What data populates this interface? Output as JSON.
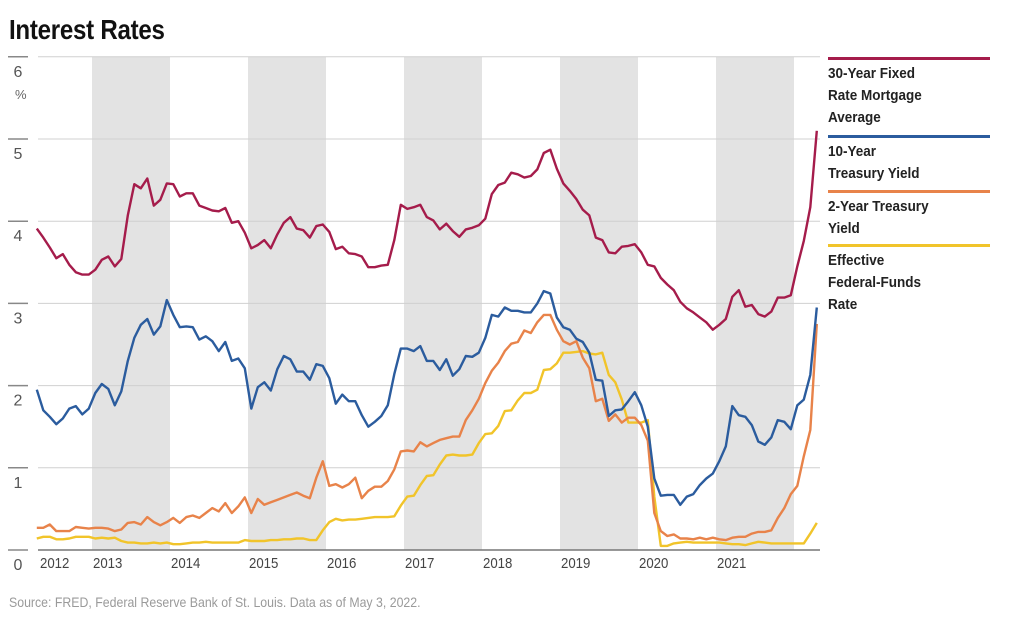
{
  "title": "Interest Rates",
  "source": "Source: FRED, Federal Reserve Bank of St. Louis. Data as of May 3, 2022.",
  "chart_data": {
    "type": "line",
    "title": "Interest Rates",
    "xlabel": "",
    "ylabel": "%",
    "ylim": [
      0,
      6
    ],
    "yticks": [
      "0",
      "1",
      "2",
      "3",
      "4",
      "5",
      "6"
    ],
    "xlim": [
      "2012-04",
      "2022-04"
    ],
    "xticks": [
      "2012",
      "2013",
      "2014",
      "2015",
      "2016",
      "2017",
      "2018",
      "2019",
      "2020",
      "2021"
    ],
    "shaded_years": [
      "2013",
      "2015",
      "2017",
      "2019",
      "2021"
    ],
    "grid": true,
    "legend_position": "right",
    "x": [
      "2012-04",
      "2012-05",
      "2012-06",
      "2012-07",
      "2012-08",
      "2012-09",
      "2012-10",
      "2012-11",
      "2012-12",
      "2013-01",
      "2013-02",
      "2013-03",
      "2013-04",
      "2013-05",
      "2013-06",
      "2013-07",
      "2013-08",
      "2013-09",
      "2013-10",
      "2013-11",
      "2013-12",
      "2014-01",
      "2014-02",
      "2014-03",
      "2014-04",
      "2014-05",
      "2014-06",
      "2014-07",
      "2014-08",
      "2014-09",
      "2014-10",
      "2014-11",
      "2014-12",
      "2015-01",
      "2015-02",
      "2015-03",
      "2015-04",
      "2015-05",
      "2015-06",
      "2015-07",
      "2015-08",
      "2015-09",
      "2015-10",
      "2015-11",
      "2015-12",
      "2016-01",
      "2016-02",
      "2016-03",
      "2016-04",
      "2016-05",
      "2016-06",
      "2016-07",
      "2016-08",
      "2016-09",
      "2016-10",
      "2016-11",
      "2016-12",
      "2017-01",
      "2017-02",
      "2017-03",
      "2017-04",
      "2017-05",
      "2017-06",
      "2017-07",
      "2017-08",
      "2017-09",
      "2017-10",
      "2017-11",
      "2017-12",
      "2018-01",
      "2018-02",
      "2018-03",
      "2018-04",
      "2018-05",
      "2018-06",
      "2018-07",
      "2018-08",
      "2018-09",
      "2018-10",
      "2018-11",
      "2018-12",
      "2019-01",
      "2019-02",
      "2019-03",
      "2019-04",
      "2019-05",
      "2019-06",
      "2019-07",
      "2019-08",
      "2019-09",
      "2019-10",
      "2019-11",
      "2019-12",
      "2020-01",
      "2020-02",
      "2020-03",
      "2020-04",
      "2020-05",
      "2020-06",
      "2020-07",
      "2020-08",
      "2020-09",
      "2020-10",
      "2020-11",
      "2020-12",
      "2021-01",
      "2021-02",
      "2021-03",
      "2021-04",
      "2021-05",
      "2021-06",
      "2021-07",
      "2021-08",
      "2021-09",
      "2021-10",
      "2021-11",
      "2021-12",
      "2022-01",
      "2022-02",
      "2022-03",
      "2022-04"
    ],
    "series": [
      {
        "name": "30-Year Fixed Rate Mortgage Average",
        "color": "#a51c4b",
        "values": [
          3.91,
          3.8,
          3.68,
          3.55,
          3.6,
          3.47,
          3.38,
          3.35,
          3.35,
          3.41,
          3.53,
          3.57,
          3.45,
          3.54,
          4.07,
          4.45,
          4.4,
          4.52,
          4.19,
          4.26,
          4.46,
          4.45,
          4.3,
          4.34,
          4.34,
          4.19,
          4.16,
          4.13,
          4.12,
          4.16,
          3.98,
          4.0,
          3.86,
          3.67,
          3.71,
          3.77,
          3.67,
          3.84,
          3.98,
          4.05,
          3.91,
          3.89,
          3.8,
          3.94,
          3.96,
          3.87,
          3.66,
          3.69,
          3.61,
          3.6,
          3.57,
          3.44,
          3.44,
          3.46,
          3.47,
          3.77,
          4.2,
          4.15,
          4.17,
          4.2,
          4.05,
          4.01,
          3.9,
          3.97,
          3.88,
          3.81,
          3.9,
          3.92,
          3.95,
          4.03,
          4.33,
          4.44,
          4.47,
          4.59,
          4.57,
          4.53,
          4.55,
          4.63,
          4.83,
          4.87,
          4.64,
          4.46,
          4.37,
          4.27,
          4.14,
          4.07,
          3.8,
          3.77,
          3.62,
          3.61,
          3.69,
          3.7,
          3.72,
          3.62,
          3.47,
          3.45,
          3.31,
          3.23,
          3.16,
          3.02,
          2.94,
          2.89,
          2.83,
          2.77,
          2.68,
          2.74,
          2.81,
          3.08,
          3.16,
          2.96,
          2.98,
          2.87,
          2.84,
          2.9,
          3.07,
          3.07,
          3.1,
          3.45,
          3.76,
          4.17,
          5.1
        ]
      },
      {
        "name": "10-Year Treasury Yield",
        "color": "#2b5c9e",
        "values": [
          1.95,
          1.7,
          1.62,
          1.53,
          1.6,
          1.72,
          1.75,
          1.65,
          1.72,
          1.91,
          2.02,
          1.96,
          1.76,
          1.93,
          2.3,
          2.58,
          2.74,
          2.81,
          2.62,
          2.72,
          3.04,
          2.86,
          2.71,
          2.72,
          2.71,
          2.56,
          2.6,
          2.54,
          2.42,
          2.53,
          2.3,
          2.33,
          2.21,
          1.72,
          1.98,
          2.04,
          1.94,
          2.2,
          2.36,
          2.32,
          2.17,
          2.17,
          2.07,
          2.26,
          2.24,
          2.09,
          1.78,
          1.89,
          1.81,
          1.81,
          1.64,
          1.5,
          1.56,
          1.63,
          1.76,
          2.14,
          2.45,
          2.45,
          2.42,
          2.48,
          2.3,
          2.3,
          2.19,
          2.32,
          2.12,
          2.2,
          2.36,
          2.35,
          2.4,
          2.58,
          2.86,
          2.84,
          2.95,
          2.91,
          2.91,
          2.89,
          2.89,
          3.0,
          3.15,
          3.12,
          2.83,
          2.71,
          2.68,
          2.57,
          2.53,
          2.4,
          2.07,
          2.06,
          1.63,
          1.7,
          1.71,
          1.81,
          1.92,
          1.76,
          1.5,
          0.87,
          0.66,
          0.67,
          0.67,
          0.55,
          0.65,
          0.68,
          0.79,
          0.87,
          0.93,
          1.08,
          1.26,
          1.75,
          1.64,
          1.62,
          1.52,
          1.32,
          1.28,
          1.37,
          1.58,
          1.56,
          1.47,
          1.76,
          1.83,
          2.13,
          2.95
        ]
      },
      {
        "name": "2-Year Treasury Yield",
        "color": "#e8834a",
        "values": [
          0.27,
          0.27,
          0.31,
          0.23,
          0.23,
          0.23,
          0.28,
          0.27,
          0.26,
          0.27,
          0.27,
          0.26,
          0.23,
          0.25,
          0.33,
          0.34,
          0.31,
          0.4,
          0.34,
          0.3,
          0.34,
          0.39,
          0.33,
          0.4,
          0.42,
          0.39,
          0.45,
          0.51,
          0.47,
          0.57,
          0.45,
          0.53,
          0.64,
          0.45,
          0.62,
          0.55,
          0.58,
          0.61,
          0.64,
          0.67,
          0.7,
          0.66,
          0.63,
          0.88,
          1.08,
          0.78,
          0.8,
          0.76,
          0.8,
          0.88,
          0.63,
          0.72,
          0.77,
          0.77,
          0.84,
          0.98,
          1.2,
          1.21,
          1.2,
          1.31,
          1.26,
          1.3,
          1.34,
          1.36,
          1.38,
          1.38,
          1.58,
          1.7,
          1.84,
          2.03,
          2.18,
          2.28,
          2.42,
          2.51,
          2.53,
          2.67,
          2.64,
          2.77,
          2.86,
          2.86,
          2.68,
          2.54,
          2.5,
          2.54,
          2.34,
          2.21,
          1.81,
          1.84,
          1.57,
          1.65,
          1.55,
          1.61,
          1.61,
          1.52,
          1.33,
          0.45,
          0.23,
          0.17,
          0.19,
          0.14,
          0.14,
          0.13,
          0.15,
          0.13,
          0.15,
          0.13,
          0.12,
          0.15,
          0.16,
          0.16,
          0.2,
          0.22,
          0.22,
          0.24,
          0.39,
          0.51,
          0.68,
          0.78,
          1.14,
          1.46,
          2.75
        ]
      },
      {
        "name": "Effective Federal-Funds Rate",
        "color": "#f1c42a",
        "values": [
          0.14,
          0.16,
          0.16,
          0.13,
          0.13,
          0.14,
          0.16,
          0.16,
          0.16,
          0.14,
          0.15,
          0.14,
          0.15,
          0.11,
          0.09,
          0.09,
          0.08,
          0.08,
          0.09,
          0.08,
          0.09,
          0.07,
          0.07,
          0.08,
          0.09,
          0.09,
          0.1,
          0.09,
          0.09,
          0.09,
          0.09,
          0.09,
          0.12,
          0.11,
          0.11,
          0.11,
          0.12,
          0.12,
          0.13,
          0.13,
          0.14,
          0.14,
          0.12,
          0.12,
          0.24,
          0.34,
          0.38,
          0.36,
          0.37,
          0.37,
          0.38,
          0.39,
          0.4,
          0.4,
          0.4,
          0.41,
          0.54,
          0.65,
          0.66,
          0.79,
          0.9,
          0.91,
          1.04,
          1.15,
          1.16,
          1.15,
          1.15,
          1.16,
          1.3,
          1.41,
          1.42,
          1.51,
          1.69,
          1.7,
          1.82,
          1.91,
          1.91,
          1.95,
          2.19,
          2.2,
          2.27,
          2.4,
          2.4,
          2.41,
          2.42,
          2.39,
          2.38,
          2.4,
          2.13,
          2.04,
          1.83,
          1.55,
          1.55,
          1.55,
          1.58,
          0.65,
          0.05,
          0.05,
          0.08,
          0.09,
          0.1,
          0.09,
          0.09,
          0.09,
          0.09,
          0.09,
          0.08,
          0.07,
          0.07,
          0.06,
          0.08,
          0.1,
          0.09,
          0.08,
          0.08,
          0.08,
          0.08,
          0.08,
          0.08,
          0.2,
          0.33
        ]
      }
    ]
  }
}
